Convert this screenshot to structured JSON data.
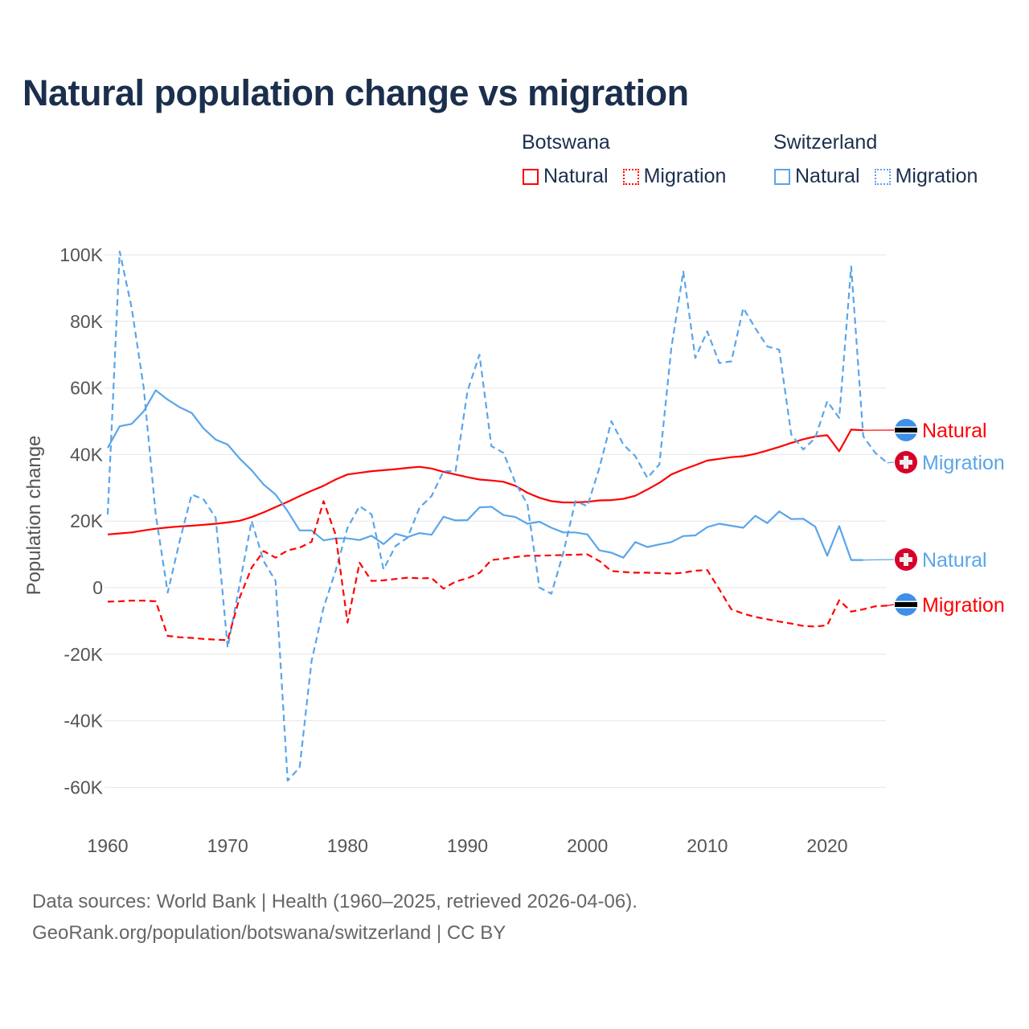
{
  "title": "Natural population change vs migration",
  "legend": {
    "groups": [
      {
        "name": "Botswana",
        "items": [
          {
            "label": "Natural",
            "style": "solid",
            "color": "#ff0000"
          },
          {
            "label": "Migration",
            "style": "dotted",
            "color": "#ff0000"
          }
        ]
      },
      {
        "name": "Switzerland",
        "items": [
          {
            "label": "Natural",
            "style": "solid",
            "color": "#5aa5ea"
          },
          {
            "label": "Migration",
            "style": "dotted",
            "color": "#5aa5ea"
          }
        ]
      }
    ]
  },
  "source_line1": "Data sources: World Bank | Health (1960–2025, retrieved 2026-04-06).",
  "source_line2": "GeoRank.org/population/botswana/switzerland | CC BY",
  "chart_data": {
    "type": "line",
    "title": "Natural population change vs migration",
    "xlabel": "",
    "ylabel": "Population change",
    "xlim": [
      1960,
      2025
    ],
    "ylim": [
      -70000,
      100000
    ],
    "x_ticks": [
      1960,
      1970,
      1980,
      1990,
      2000,
      2010,
      2020
    ],
    "x_tick_labels": [
      "1960",
      "1970",
      "1980",
      "1990",
      "2000",
      "2010",
      "2020"
    ],
    "y_ticks": [
      100000,
      80000,
      60000,
      40000,
      20000,
      0,
      -20000,
      -40000,
      -60000
    ],
    "y_tick_labels": [
      "100K",
      "80K",
      "60K",
      "40K",
      "20K",
      "0",
      "-20K",
      "-40K",
      "-60K"
    ],
    "grid": true,
    "legend_position": "top-right",
    "series": [
      {
        "name": "Botswana Natural",
        "end_label": "Natural",
        "flag": "botswana",
        "color": "#ff0000",
        "dash": false,
        "start": 1960,
        "values": [
          16000,
          16300,
          16600,
          17200,
          17700,
          18100,
          18400,
          18600,
          18900,
          19200,
          19600,
          20100,
          21200,
          22600,
          24200,
          25800,
          27500,
          29100,
          30600,
          32500,
          34000,
          34500,
          35000,
          35300,
          35600,
          36000,
          36300,
          35800,
          34800,
          34000,
          33200,
          32500,
          32200,
          31800,
          30600,
          28500,
          27000,
          26000,
          25600,
          25600,
          25800,
          26200,
          26300,
          26700,
          27600,
          29500,
          31500,
          34000,
          35500,
          36800,
          38200,
          38700,
          39200,
          39500,
          40200,
          41200,
          42300,
          43500,
          44600,
          45400,
          45800,
          41000,
          47500,
          47300
        ]
      },
      {
        "name": "Switzerland Migration",
        "end_label": "Migration",
        "flag": "switzerland",
        "color": "#5aa5ea",
        "dash": true,
        "start": 1960,
        "values": [
          22000,
          101000,
          84000,
          60000,
          22000,
          -1500,
          14000,
          28000,
          26500,
          21000,
          -18000,
          1000,
          20000,
          8000,
          2000,
          -58000,
          -54000,
          -22000,
          -6000,
          5000,
          18000,
          24500,
          22000,
          5500,
          12500,
          15000,
          24000,
          27500,
          35000,
          35000,
          59000,
          70000,
          42500,
          40500,
          31500,
          25000,
          0,
          -1800,
          10500,
          26000,
          24500,
          36000,
          50000,
          43000,
          39500,
          33000,
          37000,
          72000,
          95000,
          69000,
          77000,
          67500,
          68000,
          84000,
          78000,
          72500,
          71500,
          46000,
          41500,
          45000,
          56000,
          51000,
          96500,
          45500,
          40500,
          37500
        ]
      },
      {
        "name": "Switzerland Natural",
        "end_label": "Natural",
        "flag": "switzerland",
        "color": "#5aa5ea",
        "dash": false,
        "start": 1960,
        "values": [
          42000,
          48500,
          49200,
          53000,
          59300,
          56500,
          54200,
          52500,
          47800,
          44500,
          43000,
          38800,
          35300,
          31000,
          28000,
          23000,
          17200,
          17200,
          14200,
          14800,
          14800,
          14300,
          15600,
          13100,
          16200,
          15200,
          16400,
          15900,
          21300,
          20200,
          20300,
          24100,
          24300,
          21800,
          21200,
          19200,
          19800,
          18000,
          16600,
          16600,
          16000,
          11200,
          10500,
          9000,
          13700,
          12200,
          13000,
          13700,
          15500,
          15700,
          18200,
          19200,
          18600,
          18000,
          21600,
          19400,
          22900,
          20600,
          20700,
          18300,
          9600,
          18500,
          8300,
          8300
        ]
      },
      {
        "name": "Botswana Migration",
        "end_label": "Migration",
        "flag": "botswana",
        "color": "#ff0000",
        "dash": true,
        "start": 1960,
        "values": [
          -4200,
          -4100,
          -3900,
          -3900,
          -4100,
          -14500,
          -14900,
          -15100,
          -15400,
          -15600,
          -15800,
          -3000,
          6000,
          11000,
          9000,
          11200,
          12000,
          13800,
          26000,
          16000,
          -10500,
          7500,
          2000,
          2200,
          2600,
          3000,
          2800,
          2900,
          -300,
          1800,
          2800,
          4400,
          8300,
          8700,
          9200,
          9600,
          9600,
          9700,
          9800,
          9900,
          10000,
          8000,
          5000,
          4700,
          4500,
          4500,
          4400,
          4200,
          4500,
          5100,
          5300,
          -500,
          -6500,
          -7800,
          -8800,
          -9500,
          -10200,
          -10800,
          -11500,
          -11700,
          -11300,
          -3800,
          -7200,
          -6500,
          -5600,
          -5400
        ]
      }
    ]
  }
}
